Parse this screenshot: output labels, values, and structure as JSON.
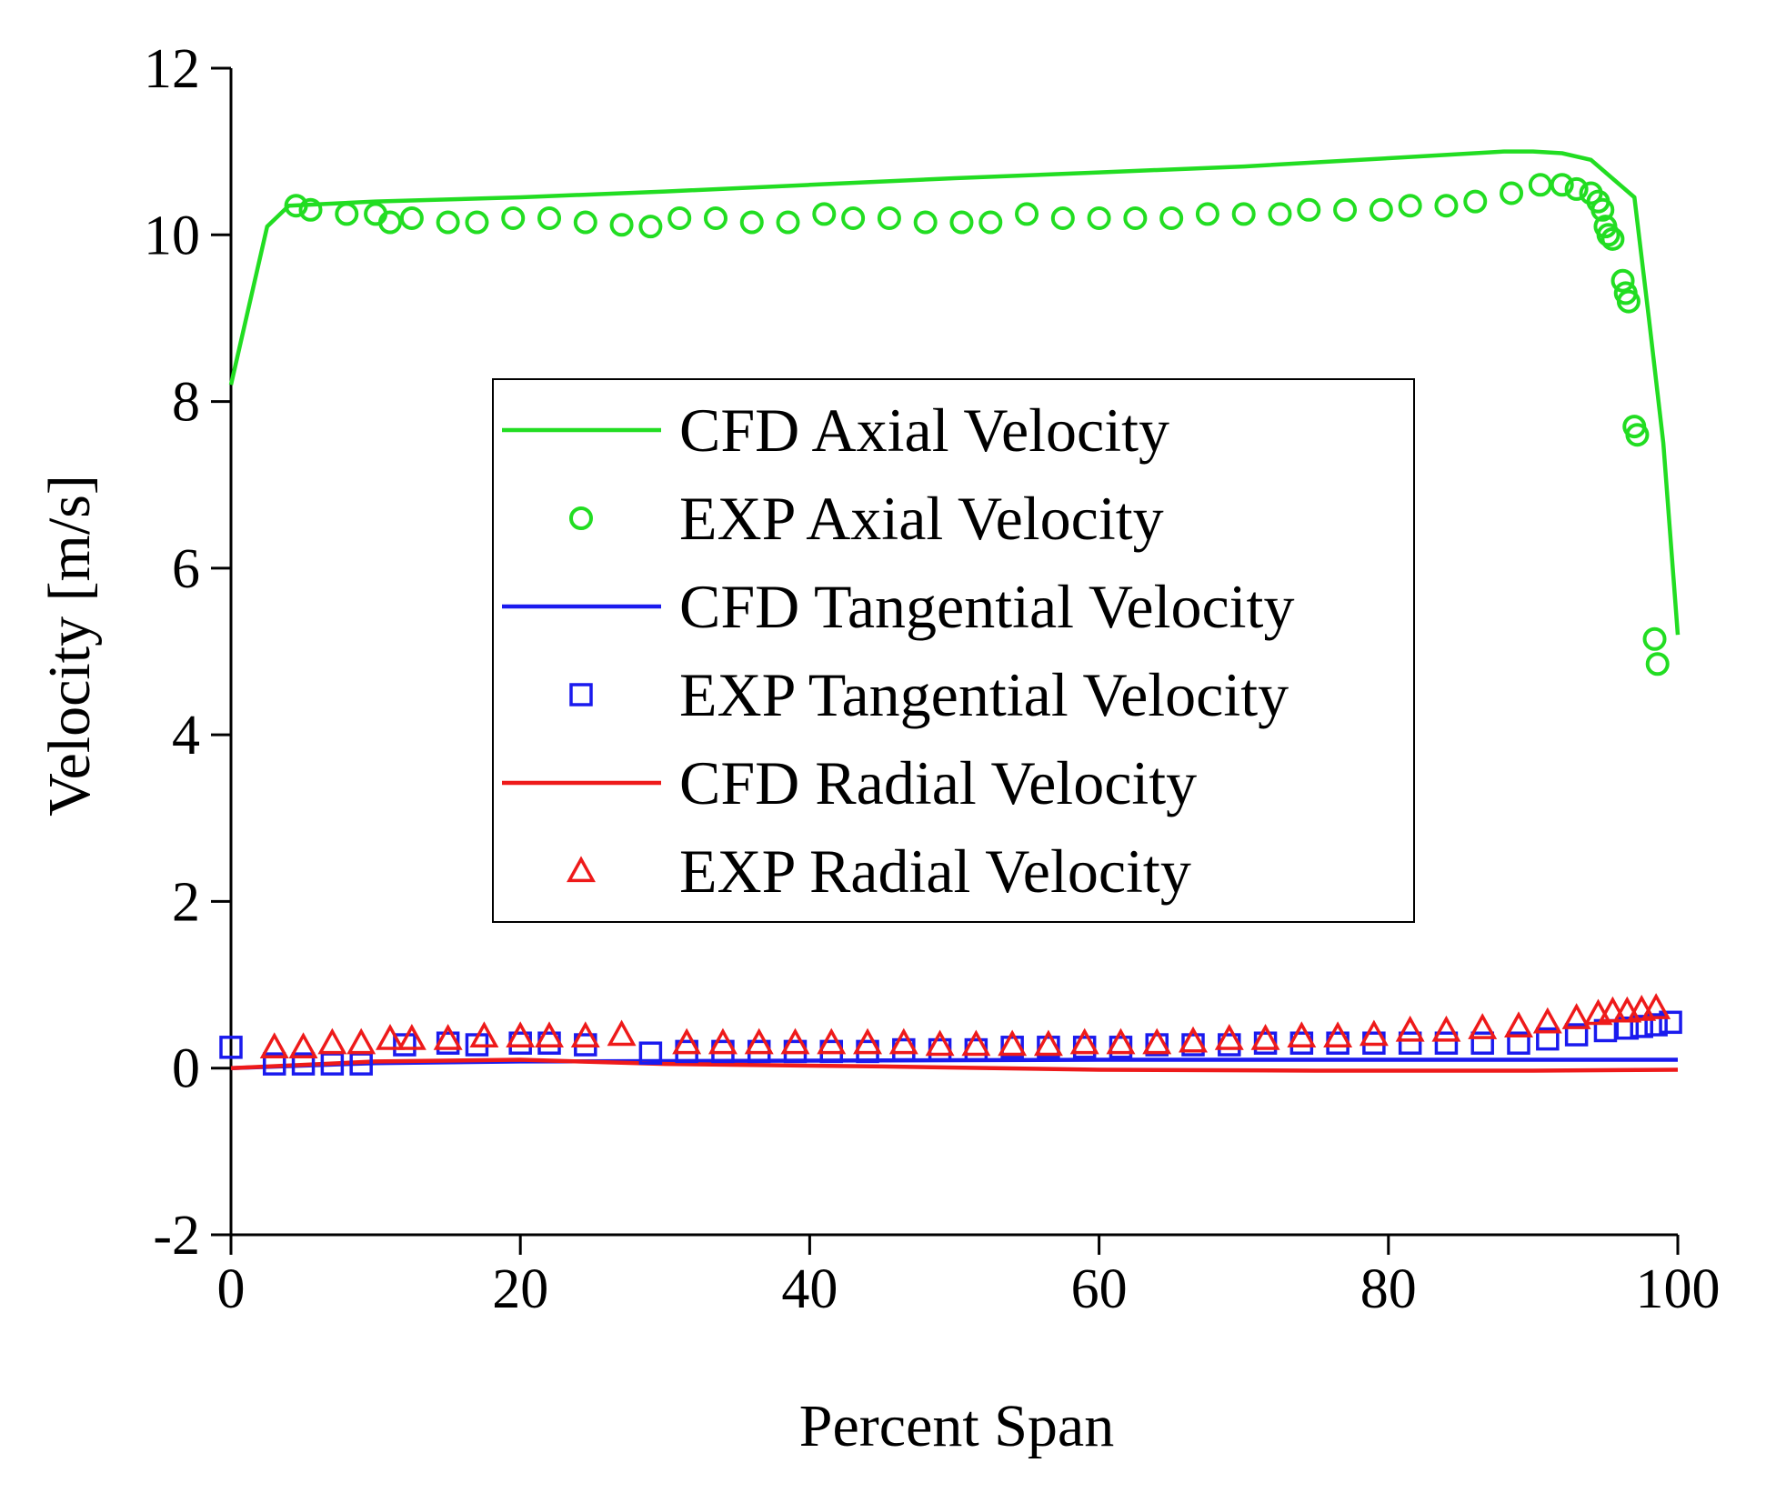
{
  "chart_data": {
    "type": "line",
    "title": "",
    "xlabel": "Percent Span",
    "ylabel": "Velocity [m/s]",
    "xlim": [
      0,
      100
    ],
    "ylim": [
      -2,
      12
    ],
    "xticks": [
      0,
      20,
      40,
      60,
      80,
      100
    ],
    "yticks": [
      -2,
      0,
      2,
      4,
      6,
      8,
      10,
      12
    ],
    "grid": false,
    "legend_position": "center",
    "series": [
      {
        "name": "CFD Axial Velocity",
        "kind": "line",
        "color": "#22dd22",
        "x": [
          0,
          2.5,
          4,
          10,
          20,
          30,
          40,
          50,
          60,
          70,
          80,
          88,
          90,
          92,
          94,
          96,
          97,
          98,
          99,
          100
        ],
        "y": [
          8.2,
          10.1,
          10.35,
          10.4,
          10.45,
          10.52,
          10.6,
          10.68,
          10.75,
          10.82,
          10.92,
          11.0,
          11.0,
          10.98,
          10.9,
          10.6,
          10.45,
          9.0,
          7.5,
          5.2
        ]
      },
      {
        "name": "EXP Axial Velocity",
        "kind": "marker",
        "marker": "circle",
        "color": "#22dd22",
        "x": [
          4.5,
          5.5,
          8,
          10,
          11,
          12.5,
          15,
          17,
          19.5,
          22,
          24.5,
          27,
          29,
          31,
          33.5,
          36,
          38.5,
          41,
          43,
          45.5,
          48,
          50.5,
          52.5,
          55,
          57.5,
          60,
          62.5,
          65,
          67.5,
          70,
          72.5,
          74.5,
          77,
          79.5,
          81.5,
          84,
          86,
          88.5,
          90.5,
          92,
          93,
          94,
          94.5,
          94.8,
          95,
          95.2,
          95.5,
          96.2,
          96.4,
          96.6,
          97,
          97.2,
          98.4,
          98.6
        ],
        "y": [
          10.35,
          10.3,
          10.25,
          10.25,
          10.15,
          10.2,
          10.15,
          10.15,
          10.2,
          10.2,
          10.15,
          10.12,
          10.1,
          10.2,
          10.2,
          10.15,
          10.15,
          10.25,
          10.2,
          10.2,
          10.15,
          10.15,
          10.15,
          10.25,
          10.2,
          10.2,
          10.2,
          10.2,
          10.25,
          10.25,
          10.25,
          10.3,
          10.3,
          10.3,
          10.35,
          10.35,
          10.4,
          10.5,
          10.6,
          10.6,
          10.55,
          10.5,
          10.4,
          10.3,
          10.1,
          10.0,
          9.95,
          9.45,
          9.3,
          9.2,
          7.7,
          7.6,
          5.15,
          4.85
        ]
      },
      {
        "name": "CFD Tangential Velocity",
        "kind": "line",
        "color": "#1a1aee",
        "x": [
          0,
          10,
          20,
          40,
          60,
          80,
          100
        ],
        "y": [
          0.0,
          0.06,
          0.08,
          0.09,
          0.1,
          0.1,
          0.1
        ]
      },
      {
        "name": "EXP Tangential Velocity",
        "kind": "marker",
        "marker": "square",
        "color": "#1a1aee",
        "x": [
          0,
          3,
          5,
          7,
          9,
          12,
          15,
          17,
          20,
          22,
          24.5,
          29,
          31.5,
          34,
          36.5,
          39,
          41.5,
          44,
          46.5,
          49,
          51.5,
          54,
          56.5,
          59,
          61.5,
          64,
          66.5,
          69,
          71.5,
          74,
          76.5,
          79,
          81.5,
          84,
          86.5,
          89,
          91,
          93,
          95,
          96.5,
          97.5,
          98.5,
          99.5
        ],
        "y": [
          0.25,
          0.05,
          0.05,
          0.05,
          0.05,
          0.28,
          0.3,
          0.28,
          0.3,
          0.3,
          0.28,
          0.18,
          0.2,
          0.2,
          0.2,
          0.2,
          0.2,
          0.2,
          0.22,
          0.22,
          0.22,
          0.25,
          0.25,
          0.25,
          0.25,
          0.28,
          0.28,
          0.28,
          0.3,
          0.3,
          0.3,
          0.3,
          0.3,
          0.3,
          0.3,
          0.3,
          0.35,
          0.4,
          0.45,
          0.48,
          0.5,
          0.52,
          0.55
        ]
      },
      {
        "name": "CFD Radial Velocity",
        "kind": "line",
        "color": "#ee1a1a",
        "x": [
          0,
          10,
          20,
          30,
          45,
          60,
          75,
          90,
          100
        ],
        "y": [
          0.0,
          0.08,
          0.1,
          0.05,
          0.02,
          -0.02,
          -0.03,
          -0.03,
          -0.02
        ]
      },
      {
        "name": "EXP Radial Velocity",
        "kind": "marker",
        "marker": "triangle",
        "color": "#ee1a1a",
        "x": [
          3,
          5,
          7,
          9,
          11,
          12.5,
          15,
          17.5,
          20,
          22,
          24.5,
          27,
          31.5,
          34,
          36.5,
          39,
          41.5,
          44,
          46.5,
          49,
          51.5,
          54,
          56.5,
          59,
          61.5,
          64,
          66.5,
          69,
          71.5,
          74,
          76.5,
          79,
          81.5,
          84,
          86.5,
          89,
          91,
          93,
          94.5,
          95.5,
          96.5,
          97.5,
          98.5
        ],
        "y": [
          0.25,
          0.25,
          0.3,
          0.3,
          0.35,
          0.35,
          0.35,
          0.38,
          0.38,
          0.38,
          0.38,
          0.4,
          0.3,
          0.3,
          0.3,
          0.3,
          0.3,
          0.3,
          0.3,
          0.28,
          0.28,
          0.28,
          0.28,
          0.3,
          0.3,
          0.3,
          0.32,
          0.35,
          0.35,
          0.38,
          0.38,
          0.4,
          0.45,
          0.45,
          0.48,
          0.5,
          0.55,
          0.6,
          0.65,
          0.68,
          0.68,
          0.7,
          0.72
        ]
      }
    ]
  }
}
